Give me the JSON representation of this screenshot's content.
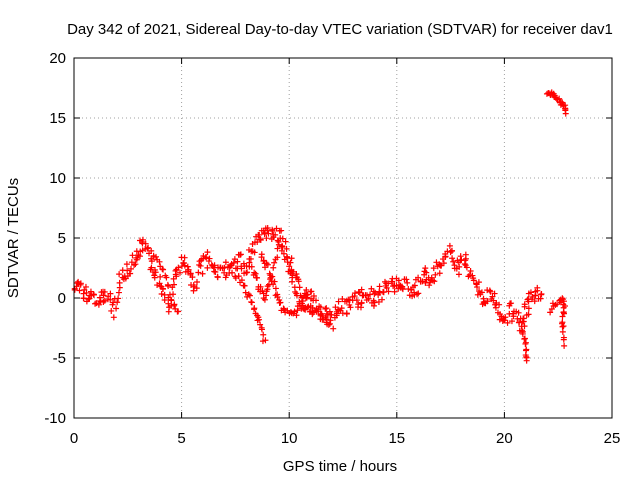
{
  "chart_data": {
    "type": "scatter",
    "title": "Day 342 of 2021, Sidereal Day-to-day VTEC variation (SDTVAR) for receiver dav1",
    "xlabel": "GPS time / hours",
    "ylabel": "SDTVAR / TECUs",
    "xlim": [
      0,
      25
    ],
    "ylim": [
      -10,
      20
    ],
    "xticks": [
      0,
      5,
      10,
      15,
      20,
      25
    ],
    "yticks": [
      -10,
      -5,
      0,
      5,
      10,
      15,
      20
    ],
    "grid": true,
    "marker": "+",
    "color": "#ff0000",
    "series": [
      {
        "name": "SDTVAR",
        "anchors": [
          [
            0.0,
            0.5
          ],
          [
            0.3,
            0.8
          ],
          [
            0.6,
            0.2
          ],
          [
            0.9,
            0.6
          ],
          [
            1.2,
            -0.4
          ],
          [
            1.5,
            0.4
          ],
          [
            1.8,
            -1.0
          ],
          [
            2.1,
            1.2
          ],
          [
            2.4,
            2.3
          ],
          [
            2.7,
            2.8
          ],
          [
            3.0,
            3.5
          ],
          [
            3.2,
            4.8
          ],
          [
            3.5,
            3.0
          ],
          [
            3.8,
            2.0
          ],
          [
            4.1,
            0.5
          ],
          [
            4.4,
            -0.6
          ],
          [
            4.7,
            1.5
          ],
          [
            5.0,
            3.0
          ],
          [
            5.3,
            2.0
          ],
          [
            5.6,
            1.0
          ],
          [
            5.9,
            2.5
          ],
          [
            6.2,
            3.2
          ],
          [
            6.5,
            2.5
          ],
          [
            6.8,
            1.8
          ],
          [
            7.1,
            2.5
          ],
          [
            7.4,
            2.8
          ],
          [
            7.7,
            3.0
          ],
          [
            8.0,
            2.5
          ],
          [
            8.2,
            3.8
          ],
          [
            8.5,
            4.5
          ],
          [
            8.8,
            5.2
          ],
          [
            9.1,
            5.6
          ],
          [
            9.4,
            5.5
          ],
          [
            9.7,
            4.5
          ],
          [
            10.0,
            3.0
          ],
          [
            10.3,
            1.5
          ],
          [
            10.6,
            0.5
          ],
          [
            10.9,
            0.0
          ],
          [
            11.2,
            -0.5
          ],
          [
            11.5,
            -1.2
          ],
          [
            11.8,
            -1.5
          ],
          [
            12.1,
            -1.0
          ],
          [
            12.4,
            -0.5
          ],
          [
            12.7,
            -0.8
          ],
          [
            13.0,
            0.0
          ],
          [
            13.3,
            -0.3
          ],
          [
            13.6,
            0.5
          ],
          [
            13.9,
            0.0
          ],
          [
            14.2,
            0.3
          ],
          [
            14.5,
            0.8
          ],
          [
            14.8,
            1.5
          ],
          [
            15.1,
            0.8
          ],
          [
            15.4,
            1.5
          ],
          [
            15.7,
            0.5
          ],
          [
            16.0,
            1.0
          ],
          [
            16.3,
            2.0
          ],
          [
            16.6,
            1.0
          ],
          [
            16.9,
            2.5
          ],
          [
            17.2,
            3.5
          ],
          [
            17.5,
            4.0
          ],
          [
            17.8,
            2.5
          ],
          [
            18.1,
            3.5
          ],
          [
            18.4,
            2.0
          ],
          [
            18.7,
            0.8
          ],
          [
            19.0,
            0.0
          ],
          [
            19.3,
            0.5
          ],
          [
            19.6,
            -0.5
          ],
          [
            19.9,
            -2.0
          ],
          [
            20.2,
            -1.0
          ],
          [
            20.5,
            -1.5
          ],
          [
            20.8,
            -2.5
          ],
          [
            21.0,
            -1.0
          ],
          [
            21.2,
            0.0
          ],
          [
            21.5,
            0.2
          ],
          [
            21.8,
            0.5
          ]
        ],
        "branches": [
          [
            [
              7.5,
              2.0
            ],
            [
              7.9,
              1.0
            ],
            [
              8.3,
              -0.5
            ],
            [
              8.6,
              -2.0
            ],
            [
              8.9,
              -4.0
            ]
          ],
          [
            [
              8.3,
              2.5
            ],
            [
              8.6,
              1.0
            ],
            [
              8.9,
              0.0
            ],
            [
              9.2,
              2.0
            ],
            [
              9.6,
              4.8
            ],
            [
              10.0,
              2.5
            ],
            [
              10.4,
              0.0
            ],
            [
              10.8,
              -1.0
            ]
          ],
          [
            [
              8.7,
              3.5
            ],
            [
              9.0,
              2.5
            ],
            [
              9.4,
              0.5
            ],
            [
              9.7,
              -1.0
            ],
            [
              10.2,
              -1.5
            ],
            [
              10.6,
              -0.5
            ],
            [
              11.0,
              -1.0
            ],
            [
              11.5,
              -1.5
            ],
            [
              12.1,
              -2.5
            ]
          ],
          [
            [
              3.6,
              4.0
            ],
            [
              4.1,
              2.5
            ],
            [
              4.5,
              0.0
            ],
            [
              4.9,
              -1.5
            ]
          ],
          [
            [
              20.8,
              -2.5
            ],
            [
              21.0,
              -4.0
            ],
            [
              21.05,
              -5.5
            ]
          ],
          [
            [
              22.1,
              -1.0
            ],
            [
              22.6,
              0.0
            ],
            [
              22.8,
              -0.5
            ],
            [
              22.7,
              -2.0
            ],
            [
              22.8,
              -4.0
            ]
          ]
        ],
        "late_group": [
          [
            22.0,
            17.1
          ],
          [
            22.2,
            17.0
          ],
          [
            22.4,
            16.7
          ],
          [
            22.6,
            16.3
          ],
          [
            22.8,
            16.0
          ],
          [
            22.85,
            15.2
          ]
        ]
      }
    ]
  }
}
